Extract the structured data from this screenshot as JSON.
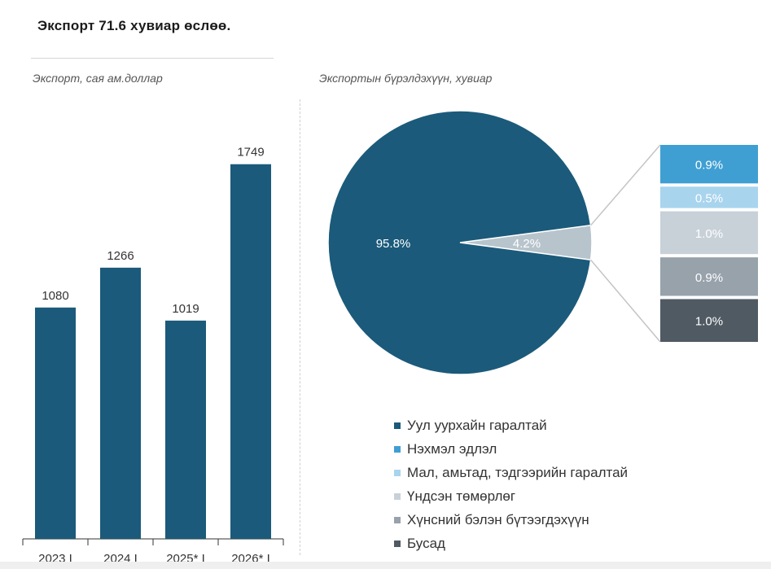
{
  "header": {
    "title": "Экспорт 71.6 хувиар өслөө."
  },
  "chart_data": [
    {
      "type": "bar",
      "title": "Экспорт, сая ам.доллар",
      "categories": [
        "2023 I",
        "2024 I",
        "2025* I",
        "2026* I"
      ],
      "values": [
        1080,
        1266,
        1019,
        1749
      ],
      "data_labels": [
        "1080",
        "1266",
        "1019",
        "1749"
      ],
      "ylim": [
        0,
        1900
      ],
      "grid": false,
      "color": "#1b5a7a"
    },
    {
      "type": "pie",
      "title": "Экспортын бүрэлдэхүүн, хувиар",
      "slices": [
        {
          "name": "Уул уурхайн гаралтай",
          "value": 95.8,
          "label": "95.8%",
          "color": "#1b5a7a"
        },
        {
          "name": "Бусад бүлэг",
          "value": 4.2,
          "label": "4.2%",
          "color": "#b8c4cc"
        }
      ],
      "breakdown": [
        {
          "name": "Нэхмэл эдлэл",
          "value": 0.9,
          "label": "0.9%",
          "color": "#3f9fd3"
        },
        {
          "name": "Мал, амьтад, тэдгээрийн гаралтай",
          "value": 0.5,
          "label": "0.5%",
          "color": "#a8d4ee"
        },
        {
          "name": "Үндсэн төмөрлөг",
          "value": 1.0,
          "label": "1.0%",
          "color": "#c8d1d8"
        },
        {
          "name": "Хүнсний бэлэн бүтээгдэхүүн",
          "value": 0.9,
          "label": "0.9%",
          "color": "#97a2ab"
        },
        {
          "name": "Бусад",
          "value": 1.0,
          "label": "1.0%",
          "color": "#505a63"
        }
      ],
      "legend_placement": "bottom",
      "legend": [
        {
          "label": "Уул уурхайн гаралтай",
          "color": "#1b5a7a"
        },
        {
          "label": "Нэхмэл эдлэл",
          "color": "#3f9fd3"
        },
        {
          "label": "Мал, амьтад, тэдгээрийн гаралтай",
          "color": "#a8d4ee"
        },
        {
          "label": "Үндсэн төмөрлөг",
          "color": "#c8d1d8"
        },
        {
          "label": "Хүнсний бэлэн бүтээгдэхүүн",
          "color": "#97a2ab"
        },
        {
          "label": "Бусад",
          "color": "#505a63"
        }
      ]
    }
  ]
}
